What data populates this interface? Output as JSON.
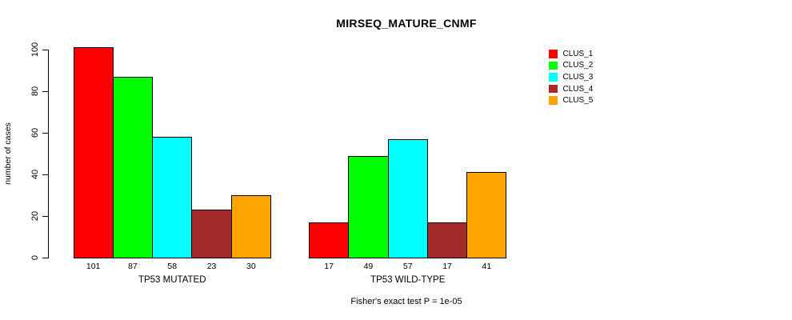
{
  "chart_data": {
    "type": "bar",
    "title": "MIRSEQ_MATURE_CNMF",
    "ylabel": "number of cases",
    "ylim": [
      0,
      100
    ],
    "yticks": [
      0,
      20,
      40,
      60,
      80,
      100
    ],
    "grid": false,
    "legend_position": "right-outside-top",
    "bar_value_labels_shown": true,
    "categories": [
      "TP53 MUTATED",
      "TP53 WILD-TYPE"
    ],
    "series": [
      {
        "name": "CLUS_1",
        "color": "#ff0000",
        "values": [
          101,
          17
        ]
      },
      {
        "name": "CLUS_2",
        "color": "#00ff00",
        "values": [
          87,
          49
        ]
      },
      {
        "name": "CLUS_3",
        "color": "#00ffff",
        "values": [
          58,
          57
        ]
      },
      {
        "name": "CLUS_4",
        "color": "#a52a2a",
        "values": [
          23,
          17
        ]
      },
      {
        "name": "CLUS_5",
        "color": "#ffa500",
        "values": [
          30,
          41
        ]
      }
    ],
    "caption": "Fisher's exact test P = 1e-05",
    "axis_color": "#000000",
    "bar_border_color": "#000000"
  }
}
